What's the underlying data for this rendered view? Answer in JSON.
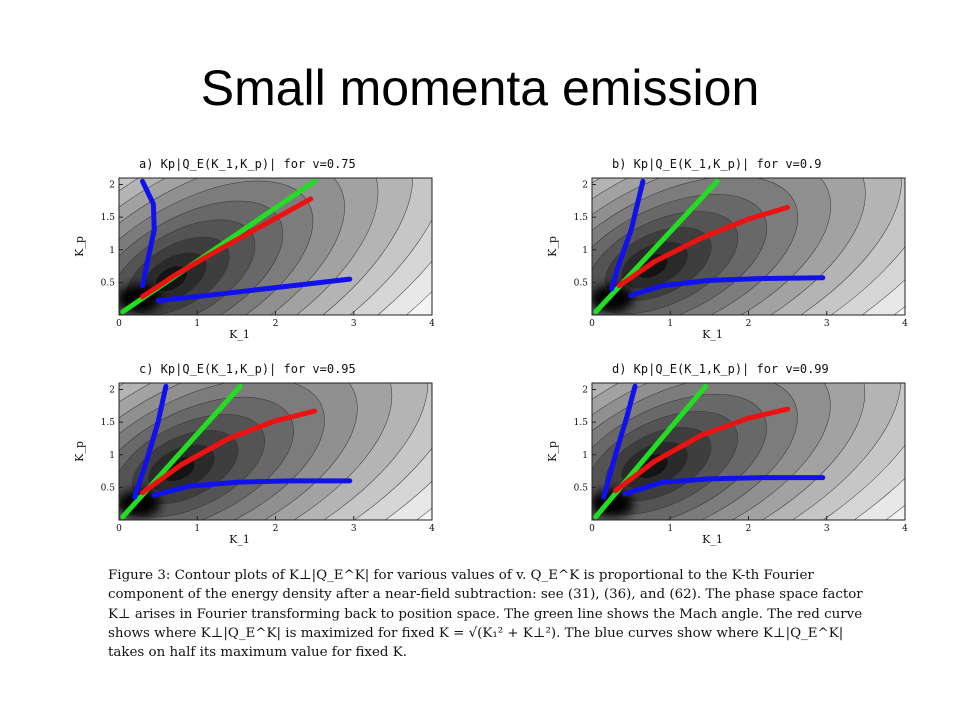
{
  "slide": {
    "title": "Small momenta emission"
  },
  "figure": {
    "caption": {
      "label": "Figure 3:",
      "text": "Contour plots of K⊥|Q_E^K| for various values of v. Q_E^K is proportional to the K-th Fourier component of the energy density after a near-field subtraction: see (31), (36), and (62). The phase space factor K⊥ arises in Fourier transforming back to position space. The green line shows the Mach angle. The red curve shows where K⊥|Q_E^K| is maximized for fixed K = √(K₁² + K⊥²). The blue curves show where K⊥|Q_E^K| takes on half its maximum value for fixed K."
    }
  },
  "chart_data": [
    {
      "type": "contour",
      "title": "a) Kp|Q_E(K_1,K_p)| for v=0.75",
      "xlabel": "K_1",
      "ylabel": "K_p",
      "xlim": [
        0,
        4
      ],
      "ylim": [
        0,
        2.1
      ],
      "xticks": [
        "0",
        "1",
        "2",
        "3",
        "4"
      ],
      "yticks": [
        "0.5",
        "1",
        "1.5",
        "2"
      ],
      "series": [
        {
          "color": "#22dd22",
          "points": [
            [
              0.05,
              0.05
            ],
            [
              2.5,
              2.05
            ]
          ]
        },
        {
          "color": "#ee1111",
          "points": [
            [
              0.3,
              0.28
            ],
            [
              0.7,
              0.6
            ],
            [
              1.2,
              0.95
            ],
            [
              1.8,
              1.35
            ],
            [
              2.45,
              1.78
            ]
          ]
        },
        {
          "color": "#1111ee",
          "points": [
            [
              0.3,
              0.45
            ],
            [
              0.36,
              0.8
            ],
            [
              0.45,
              1.3
            ],
            [
              0.44,
              1.7
            ],
            [
              0.3,
              2.05
            ]
          ]
        },
        {
          "color": "#1111ee",
          "points": [
            [
              0.5,
              0.22
            ],
            [
              1.2,
              0.31
            ],
            [
              2.0,
              0.42
            ],
            [
              2.95,
              0.55
            ]
          ]
        }
      ]
    },
    {
      "type": "contour",
      "title": "b) Kp|Q_E(K_1,K_p)| for v=0.9",
      "xlabel": "K_1",
      "ylabel": "K_p",
      "xlim": [
        0,
        4
      ],
      "ylim": [
        0,
        2.1
      ],
      "xticks": [
        "0",
        "1",
        "2",
        "3",
        "4"
      ],
      "yticks": [
        "0.5",
        "1",
        "1.5",
        "2"
      ],
      "series": [
        {
          "color": "#22dd22",
          "points": [
            [
              0.05,
              0.05
            ],
            [
              1.6,
              2.05
            ]
          ]
        },
        {
          "color": "#ee1111",
          "points": [
            [
              0.35,
              0.45
            ],
            [
              0.8,
              0.82
            ],
            [
              1.4,
              1.18
            ],
            [
              2.0,
              1.47
            ],
            [
              2.5,
              1.65
            ]
          ]
        },
        {
          "color": "#1111ee",
          "points": [
            [
              0.25,
              0.4
            ],
            [
              0.35,
              0.8
            ],
            [
              0.5,
              1.3
            ],
            [
              0.65,
              2.05
            ]
          ]
        },
        {
          "color": "#1111ee",
          "points": [
            [
              0.5,
              0.3
            ],
            [
              0.9,
              0.45
            ],
            [
              1.5,
              0.53
            ],
            [
              2.2,
              0.56
            ],
            [
              2.95,
              0.57
            ]
          ]
        }
      ]
    },
    {
      "type": "contour",
      "title": "c) Kp|Q_E(K_1,K_p)| for v=0.95",
      "xlabel": "K_1",
      "ylabel": "K_p",
      "xlim": [
        0,
        4
      ],
      "ylim": [
        0,
        2.1
      ],
      "xticks": [
        "0",
        "1",
        "2",
        "3",
        "4"
      ],
      "yticks": [
        "0.5",
        "1",
        "1.5",
        "2"
      ],
      "series": [
        {
          "color": "#22dd22",
          "points": [
            [
              0.05,
              0.05
            ],
            [
              1.55,
              2.05
            ]
          ]
        },
        {
          "color": "#ee1111",
          "points": [
            [
              0.3,
              0.42
            ],
            [
              0.8,
              0.85
            ],
            [
              1.4,
              1.25
            ],
            [
              2.0,
              1.52
            ],
            [
              2.5,
              1.67
            ]
          ]
        },
        {
          "color": "#1111ee",
          "points": [
            [
              0.2,
              0.35
            ],
            [
              0.35,
              0.9
            ],
            [
              0.5,
              1.5
            ],
            [
              0.6,
              2.05
            ]
          ]
        },
        {
          "color": "#1111ee",
          "points": [
            [
              0.45,
              0.38
            ],
            [
              0.9,
              0.52
            ],
            [
              1.5,
              0.58
            ],
            [
              2.2,
              0.6
            ],
            [
              2.95,
              0.6
            ]
          ]
        }
      ]
    },
    {
      "type": "contour",
      "title": "d) Kp|Q_E(K_1,K_p)| for v=0.99",
      "xlabel": "K_1",
      "ylabel": "K_p",
      "xlim": [
        0,
        4
      ],
      "ylim": [
        0,
        2.1
      ],
      "xticks": [
        "0",
        "1",
        "2",
        "3",
        "4"
      ],
      "yticks": [
        "0.5",
        "1",
        "1.5",
        "2"
      ],
      "series": [
        {
          "color": "#22dd22",
          "points": [
            [
              0.05,
              0.05
            ],
            [
              1.45,
              2.05
            ]
          ]
        },
        {
          "color": "#ee1111",
          "points": [
            [
              0.3,
              0.45
            ],
            [
              0.8,
              0.9
            ],
            [
              1.4,
              1.3
            ],
            [
              2.0,
              1.56
            ],
            [
              2.5,
              1.7
            ]
          ]
        },
        {
          "color": "#1111ee",
          "points": [
            [
              0.15,
              0.35
            ],
            [
              0.3,
              1.0
            ],
            [
              0.45,
              1.6
            ],
            [
              0.55,
              2.05
            ]
          ]
        },
        {
          "color": "#1111ee",
          "points": [
            [
              0.42,
              0.4
            ],
            [
              0.9,
              0.58
            ],
            [
              1.5,
              0.63
            ],
            [
              2.2,
              0.65
            ],
            [
              2.95,
              0.65
            ]
          ]
        }
      ]
    }
  ]
}
